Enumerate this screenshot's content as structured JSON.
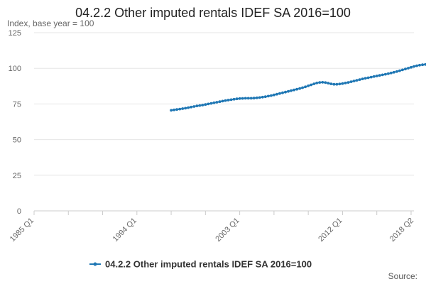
{
  "chart_data": {
    "type": "line",
    "title": "04.2.2 Other imputed rentals IDEF SA 2016=100",
    "ylabel": "Index, base year = 100",
    "xlabel": "",
    "ylim": [
      0,
      125
    ],
    "y_ticks": [
      0,
      25,
      50,
      75,
      100,
      125
    ],
    "x_tick_labels": [
      "1985 Q1",
      "1994 Q1",
      "2003 Q1",
      "2012 Q1",
      "2018 Q2"
    ],
    "grid": "horizontal",
    "legend_position": "bottom",
    "source_label": "Source:",
    "accent_color": "#1f77b4",
    "series": [
      {
        "name": "04.2.2 Other imputed rentals IDEF SA 2016=100",
        "color": "#1f77b4",
        "start": "1997 Q1",
        "values": [
          70.5,
          70.8,
          71.1,
          71.4,
          71.7,
          72.0,
          72.4,
          72.8,
          73.2,
          73.6,
          73.9,
          74.2,
          74.6,
          75.0,
          75.4,
          75.8,
          76.2,
          76.6,
          77.0,
          77.4,
          77.7,
          78.0,
          78.3,
          78.6,
          78.8,
          78.9,
          79.0,
          79.0,
          79.0,
          79.1,
          79.3,
          79.5,
          79.8,
          80.1,
          80.5,
          80.9,
          81.3,
          81.8,
          82.3,
          82.8,
          83.3,
          83.8,
          84.3,
          84.8,
          85.3,
          85.8,
          86.4,
          87.0,
          87.7,
          88.4,
          89.1,
          89.7,
          90.1,
          90.2,
          90.0,
          89.6,
          89.1,
          88.8,
          88.8,
          89.0,
          89.3,
          89.7,
          90.1,
          90.6,
          91.1,
          91.6,
          92.1,
          92.6,
          93.0,
          93.4,
          93.8,
          94.2,
          94.6,
          95.0,
          95.4,
          95.8,
          96.2,
          96.7,
          97.2,
          97.7,
          98.3,
          98.9,
          99.5,
          100.1,
          100.7,
          101.3,
          101.8,
          102.2,
          102.5,
          102.7,
          102.9,
          103.0
        ]
      }
    ]
  }
}
